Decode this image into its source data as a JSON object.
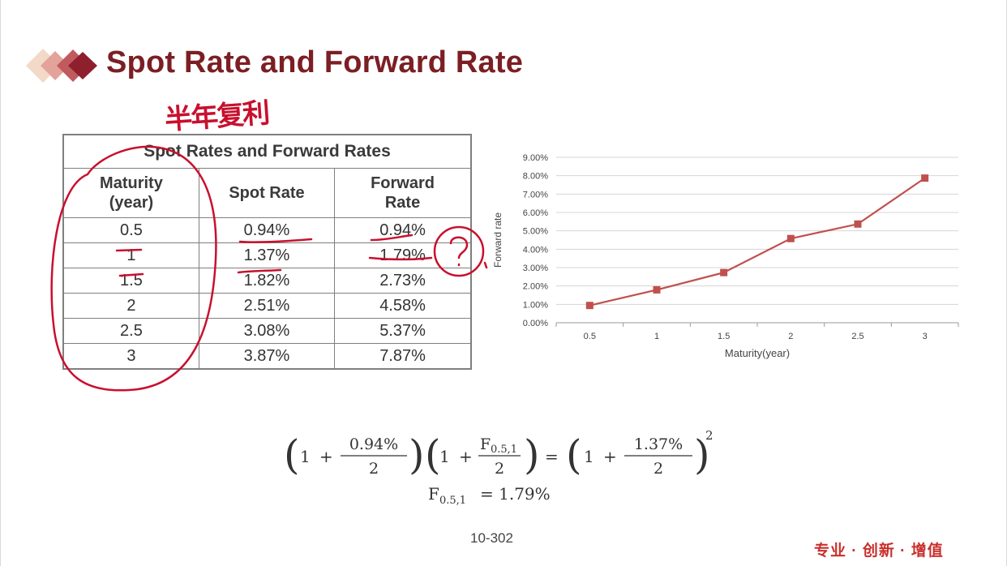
{
  "slide": {
    "title": "Spot Rate and Forward Rate",
    "page_number": "10-302",
    "slogan": "专业 · 创新 · 增值"
  },
  "annotation": {
    "handwritten_note": "半年复利"
  },
  "table": {
    "caption": "Spot Rates and Forward Rates",
    "headers": [
      "Maturity (year)",
      "Spot Rate",
      "Forward Rate"
    ],
    "header_lines": [
      [
        "Maturity",
        "(year)"
      ],
      [
        "Spot Rate"
      ],
      [
        "Forward",
        "Rate"
      ]
    ],
    "rows": [
      [
        "0.5",
        "0.94%",
        "0.94%"
      ],
      [
        "1",
        "1.37%",
        "1.79%"
      ],
      [
        "1.5",
        "1.82%",
        "2.73%"
      ],
      [
        "2",
        "2.51%",
        "4.58%"
      ],
      [
        "2.5",
        "3.08%",
        "5.37%"
      ],
      [
        "3",
        "3.87%",
        "7.87%"
      ]
    ]
  },
  "chart_data": {
    "type": "line",
    "x": [
      "0.5",
      "1",
      "1.5",
      "2",
      "2.5",
      "3"
    ],
    "series": [
      {
        "values": [
          0.94,
          1.79,
          2.73,
          4.58,
          5.37,
          7.87
        ]
      }
    ],
    "xlabel": "Maturity(year)",
    "ylabel": "Forward rate",
    "ylim": [
      0,
      9
    ],
    "yticks": [
      "0.00%",
      "1.00%",
      "2.00%",
      "3.00%",
      "4.00%",
      "5.00%",
      "6.00%",
      "7.00%",
      "8.00%",
      "9.00%"
    ],
    "grid": true,
    "legend": "none",
    "color": "#c0504d"
  },
  "formula": {
    "open_paren": "(",
    "close_paren": ")",
    "one": "1",
    "plus": "+",
    "eq": "=",
    "frac1_num": "0.94%",
    "frac1_den": "2",
    "frac2_num": "F",
    "frac2_num_sub": "0.5,1",
    "frac2_den": "2",
    "frac3_num": "1.37%",
    "frac3_den": "2",
    "power": "2",
    "result_lhs": "F",
    "result_lhs_sub": "0.5,1",
    "result_rhs": "= 1.79%"
  },
  "colors": {
    "title": "#7b1f24",
    "ink_annotation": "#c8102e",
    "series": "#c0504d"
  }
}
